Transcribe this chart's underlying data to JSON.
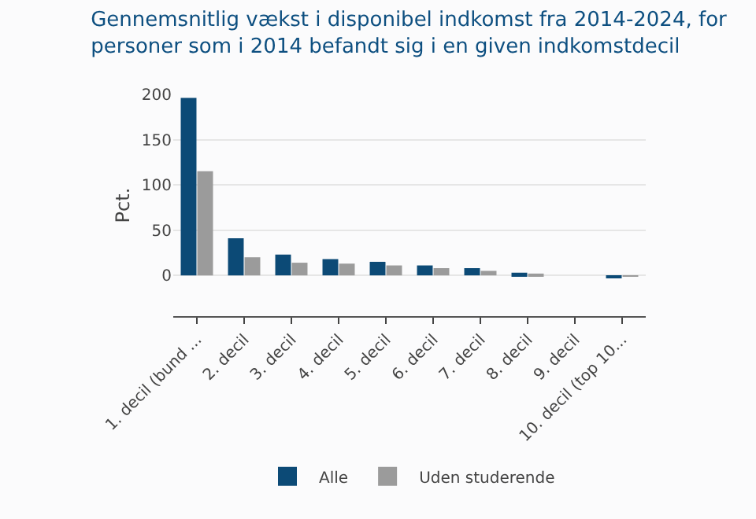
{
  "chart_data": {
    "type": "bar",
    "title": "Gennemsnitlig vækst i disponibel indkomst fra 2014-2024, for personer som i 2014 befandt sig i en given indkomstdecil",
    "ylabel": "Pct.",
    "categories": [
      "1. decil (bund ...",
      "2. decil",
      "3. decil",
      "4. decil",
      "5. decil",
      "6. decil",
      "7. decil",
      "8. decil",
      "9. decil",
      "10. decil (top 10..."
    ],
    "series": [
      {
        "name": "Alle",
        "color": "#0c4a76",
        "values": [
          196,
          41,
          23,
          18,
          15,
          11,
          8,
          3,
          0,
          -3
        ]
      },
      {
        "name": "Uden studerende",
        "color": "#9b9b9b",
        "values": [
          115,
          20,
          14,
          13,
          11,
          8,
          5,
          2,
          0,
          -1
        ]
      }
    ],
    "ylim": [
      -45,
      200
    ],
    "yticks": [
      0,
      50,
      100,
      150,
      200
    ],
    "grid": "y",
    "legend": "bottom"
  }
}
